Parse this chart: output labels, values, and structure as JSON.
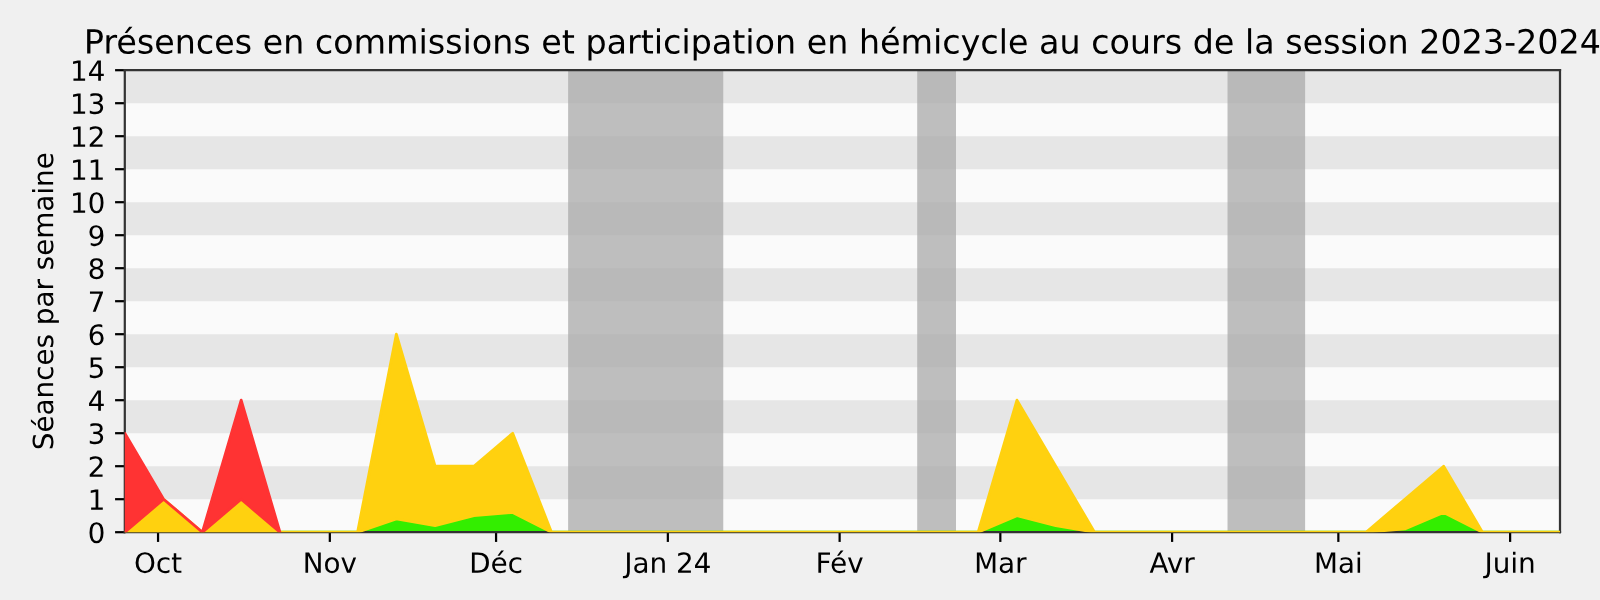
{
  "chart_data": {
    "type": "area",
    "title": "Présences en commissions et participation en hémicycle au cours de la session 2023-2024",
    "ylabel": "Séances par semaine",
    "stacked": true,
    "x": [
      "2023-09-25",
      "2023-10-02",
      "2023-10-09",
      "2023-10-16",
      "2023-10-23",
      "2023-10-30",
      "2023-11-06",
      "2023-11-13",
      "2023-11-20",
      "2023-11-27",
      "2023-12-04",
      "2023-12-11",
      "2023-12-18",
      "2023-12-25",
      "2024-01-01",
      "2024-01-08",
      "2024-01-15",
      "2024-01-22",
      "2024-01-29",
      "2024-02-05",
      "2024-02-12",
      "2024-02-19",
      "2024-02-26",
      "2024-03-04",
      "2024-03-11",
      "2024-03-18",
      "2024-03-25",
      "2024-04-01",
      "2024-04-08",
      "2024-04-15",
      "2024-04-22",
      "2024-04-29",
      "2024-05-06",
      "2024-05-13",
      "2024-05-20",
      "2024-05-27",
      "2024-06-03",
      "2024-06-10"
    ],
    "series": [
      {
        "color": "#33ee00",
        "values": [
          0,
          0,
          0,
          0,
          0,
          0,
          0,
          0.4,
          0.2,
          0.5,
          0.6,
          0,
          0,
          0,
          0,
          0,
          0,
          0,
          0,
          0,
          0,
          0,
          0,
          0.5,
          0.2,
          0,
          0,
          0,
          0,
          0,
          0,
          0,
          0,
          0.1,
          0.6,
          0,
          0,
          0
        ]
      },
      {
        "color": "#ffd10f",
        "values": [
          0,
          1,
          0,
          1,
          0,
          0,
          0,
          5.6,
          1.8,
          1.5,
          2.4,
          0,
          0,
          0,
          0,
          0,
          0,
          0,
          0,
          0,
          0,
          0,
          0,
          3.5,
          1.8,
          0,
          0,
          0,
          0,
          0,
          0,
          0,
          0,
          0.9,
          1.4,
          0,
          0,
          0
        ]
      },
      {
        "color": "#ff3333",
        "values": [
          3,
          0,
          0,
          3,
          0,
          null,
          null,
          null,
          null,
          null,
          null,
          null,
          null,
          null,
          null,
          null,
          null,
          null,
          null,
          null,
          null,
          null,
          null,
          null,
          null,
          null,
          null,
          null,
          null,
          null,
          null,
          null,
          null,
          null,
          null,
          null,
          null,
          null
        ]
      }
    ],
    "bands": [
      {
        "axis": "x",
        "from": "2023-12-14",
        "to": "2024-01-11",
        "color": "#aaaaaa"
      },
      {
        "axis": "x",
        "from": "2024-02-15",
        "to": "2024-02-22",
        "color": "#aaaaaa"
      },
      {
        "axis": "x",
        "from": "2024-04-11",
        "to": "2024-04-25",
        "color": "#aaaaaa"
      }
    ],
    "xlim": [
      "2023-09-25",
      "2024-06-10"
    ],
    "xticks": [
      {
        "value": "2023-10-01",
        "label": "Oct"
      },
      {
        "value": "2023-11-01",
        "label": "Nov"
      },
      {
        "value": "2023-12-01",
        "label": "Déc"
      },
      {
        "value": "2024-01-01",
        "label": "Jan 24"
      },
      {
        "value": "2024-02-01",
        "label": "Fév"
      },
      {
        "value": "2024-03-01",
        "label": "Mar"
      },
      {
        "value": "2024-04-01",
        "label": "Avr"
      },
      {
        "value": "2024-05-01",
        "label": "Mai"
      },
      {
        "value": "2024-06-01",
        "label": "Juin"
      }
    ],
    "ylim": [
      0,
      14
    ],
    "yticks": [
      0,
      1,
      2,
      3,
      4,
      5,
      6,
      7,
      8,
      9,
      10,
      11,
      12,
      13,
      14
    ]
  }
}
